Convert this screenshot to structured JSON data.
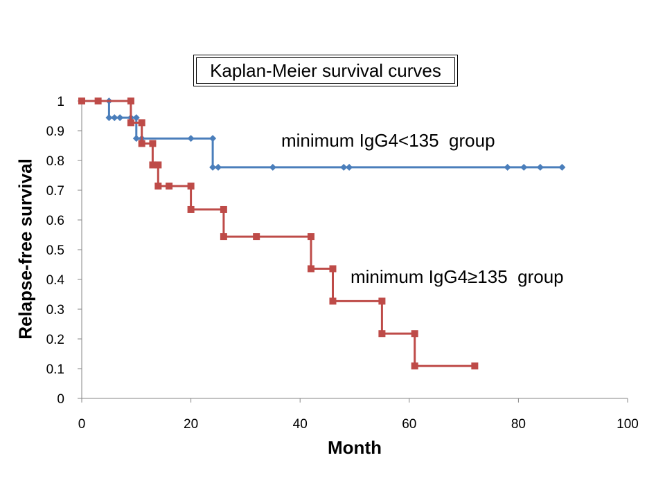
{
  "chart_data": {
    "type": "line",
    "title": "Kaplan-Meier survival curves",
    "xlabel": "Month",
    "ylabel": "Relapse-free survival",
    "xlim": [
      0,
      100
    ],
    "ylim": [
      0,
      1
    ],
    "xticks": [
      0,
      20,
      40,
      60,
      80,
      100
    ],
    "yticks": [
      0,
      0.1,
      0.2,
      0.3,
      0.4,
      0.5,
      0.6,
      0.7,
      0.8,
      0.9,
      1
    ],
    "ytick_labels": [
      "0",
      "0.1",
      "0.2",
      "0.3",
      "0.4",
      "0.5",
      "0.6",
      "0.7",
      "0.8",
      "0.9",
      "1"
    ],
    "grid": false,
    "series": [
      {
        "name": "minimum IgG4<135  group",
        "color": "#4A7EBB",
        "marker": "diamond",
        "x": [
          0,
          5,
          5,
          6,
          7,
          9,
          10,
          10,
          11,
          20,
          24,
          24,
          25,
          35,
          48,
          49,
          78,
          81,
          84,
          88
        ],
        "y": [
          1,
          1,
          0.944,
          0.944,
          0.944,
          0.944,
          0.944,
          0.874,
          0.874,
          0.874,
          0.874,
          0.777,
          0.777,
          0.777,
          0.777,
          0.777,
          0.777,
          0.777,
          0.777,
          0.777
        ]
      },
      {
        "name": "minimum IgG4≥135  group",
        "color": "#BE4B48",
        "marker": "square",
        "x": [
          0,
          3,
          9,
          9,
          11,
          11,
          13,
          13,
          14,
          14,
          16,
          20,
          20,
          26,
          26,
          32,
          42,
          42,
          46,
          46,
          55,
          55,
          61,
          61,
          72
        ],
        "y": [
          1,
          1,
          1,
          0.927,
          0.927,
          0.857,
          0.857,
          0.785,
          0.785,
          0.714,
          0.714,
          0.714,
          0.635,
          0.635,
          0.544,
          0.544,
          0.544,
          0.436,
          0.436,
          0.327,
          0.327,
          0.218,
          0.218,
          0.109,
          0.109
        ]
      }
    ],
    "annotations": [
      "minimum IgG4<135  group",
      "minimum IgG4≥135  group"
    ]
  }
}
